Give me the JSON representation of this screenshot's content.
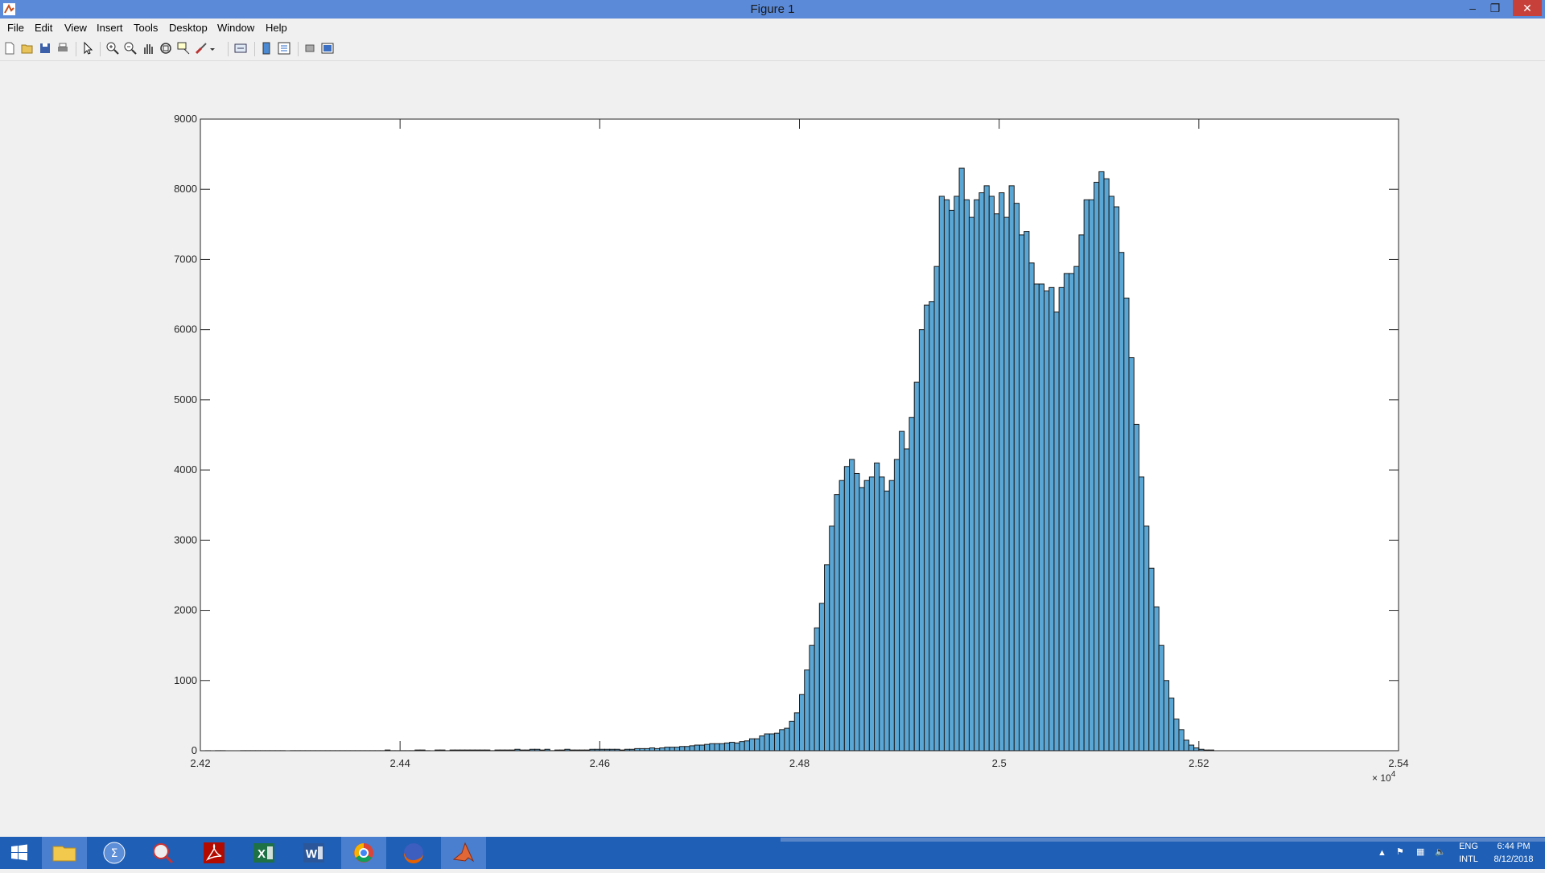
{
  "window": {
    "title": "Figure 1"
  },
  "window_controls": {
    "minimize": "–",
    "restore": "❐",
    "close": "✕"
  },
  "menu": {
    "items": [
      "File",
      "Edit",
      "View",
      "Insert",
      "Tools",
      "Desktop",
      "Window",
      "Help"
    ]
  },
  "toolbar": {
    "buttons": [
      "new-figure-icon",
      "open-file-icon",
      "save-icon",
      "print-icon",
      "edit-plot-arrow-icon",
      "zoom-in-icon",
      "zoom-out-icon",
      "pan-hand-icon",
      "rotate-3d-icon",
      "data-cursor-icon",
      "brush-icon",
      "brush-dropdown-icon",
      "link-plot-icon",
      "colorbar-icon",
      "legend-icon",
      "hide-plot-tools-icon",
      "show-plot-tools-icon"
    ]
  },
  "chart_data": {
    "type": "bar",
    "title": "",
    "xlabel": "",
    "ylabel": "",
    "xlim": [
      24200,
      25400
    ],
    "ylim": [
      0,
      9000
    ],
    "x_exponent_label": "× 10",
    "x_exponent_power": "4",
    "x_ticks": [
      "2.42",
      "2.44",
      "2.46",
      "2.48",
      "2.5",
      "2.52",
      "2.54"
    ],
    "y_ticks": [
      "0",
      "1000",
      "2000",
      "3000",
      "4000",
      "5000",
      "6000",
      "7000",
      "8000",
      "9000"
    ],
    "bar_color": "#5aa7d6",
    "bar_edge_color": "#1a1a1a",
    "bin_start": 24205,
    "bin_width": 5,
    "values": [
      1,
      0,
      1,
      1,
      0,
      0,
      0,
      1,
      1,
      1,
      1,
      1,
      1,
      1,
      1,
      1,
      0,
      1,
      1,
      1,
      1,
      1,
      1,
      1,
      1,
      1,
      1,
      1,
      1,
      1,
      1,
      1,
      1,
      1,
      1,
      1,
      10,
      1,
      1,
      1,
      1,
      1,
      10,
      10,
      1,
      0,
      10,
      10,
      1,
      10,
      10,
      10,
      10,
      10,
      10,
      10,
      10,
      1,
      10,
      10,
      10,
      10,
      20,
      10,
      10,
      20,
      20,
      10,
      20,
      1,
      10,
      10,
      20,
      10,
      10,
      10,
      10,
      20,
      20,
      20,
      20,
      20,
      20,
      10,
      20,
      20,
      30,
      30,
      30,
      40,
      30,
      40,
      50,
      50,
      50,
      60,
      60,
      70,
      80,
      80,
      90,
      100,
      100,
      100,
      110,
      120,
      110,
      130,
      140,
      170,
      170,
      210,
      240,
      240,
      250,
      300,
      320,
      420,
      540,
      800,
      1150,
      1500,
      1750,
      2100,
      2650,
      3200,
      3650,
      3850,
      4050,
      4150,
      3950,
      3750,
      3850,
      3900,
      4100,
      3900,
      3700,
      3850,
      4150,
      4550,
      4300,
      4750,
      5250,
      6000,
      6350,
      6400,
      6900,
      7900,
      7850,
      7700,
      7900,
      8300,
      7850,
      7600,
      7850,
      7950,
      8050,
      7900,
      7650,
      7950,
      7600,
      8050,
      7800,
      7350,
      7400,
      6950,
      6650,
      6650,
      6550,
      6600,
      6250,
      6600,
      6800,
      6800,
      6900,
      7350,
      7850,
      7850,
      8100,
      8250,
      8150,
      7900,
      7750,
      7100,
      6450,
      5600,
      4650,
      3900,
      3200,
      2600,
      2050,
      1500,
      1000,
      750,
      450,
      300,
      150,
      80,
      40,
      20,
      10,
      10,
      0,
      0,
      0,
      0,
      0,
      0,
      0,
      0,
      0,
      0,
      0,
      0,
      0,
      0,
      0,
      0,
      0,
      0,
      0,
      0,
      0,
      0,
      0,
      0,
      0,
      0,
      0,
      0,
      0,
      0,
      0,
      0,
      0,
      0,
      0,
      0
    ]
  },
  "taskbar": {
    "apps": [
      "windows-start-icon",
      "file-explorer-icon",
      "math-input-icon",
      "snipping-tool-icon",
      "acrobat-icon",
      "excel-icon",
      "word-icon",
      "chrome-icon",
      "firefox-icon",
      "matlab-icon"
    ],
    "tray_language": "ENG",
    "tray_layout": "INTL",
    "time": "6:44 PM",
    "date": "8/12/2018"
  }
}
